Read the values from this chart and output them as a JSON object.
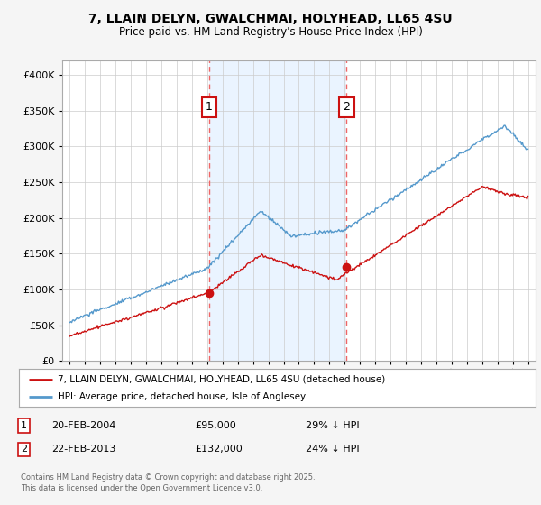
{
  "title_line1": "7, LLAIN DELYN, GWALCHMAI, HOLYHEAD, LL65 4SU",
  "title_line2": "Price paid vs. HM Land Registry's House Price Index (HPI)",
  "background_color": "#f5f5f5",
  "plot_bg_color": "#ffffff",
  "red_color": "#cc1111",
  "blue_color": "#5599cc",
  "dashed_color": "#ee6666",
  "shade_color": "#ddeeff",
  "legend_label_red": "7, LLAIN DELYN, GWALCHMAI, HOLYHEAD, LL65 4SU (detached house)",
  "legend_label_blue": "HPI: Average price, detached house, Isle of Anglesey",
  "marker1_x": 2004.12,
  "marker2_x": 2013.12,
  "marker1_sale_y": 95000,
  "marker2_sale_y": 132000,
  "marker1_label": "1",
  "marker2_label": "2",
  "footer": "Contains HM Land Registry data © Crown copyright and database right 2025.\nThis data is licensed under the Open Government Licence v3.0.",
  "ylim": [
    0,
    420000
  ],
  "xlim": [
    1994.5,
    2025.5
  ],
  "yticks": [
    0,
    50000,
    100000,
    150000,
    200000,
    250000,
    300000,
    350000,
    400000
  ]
}
